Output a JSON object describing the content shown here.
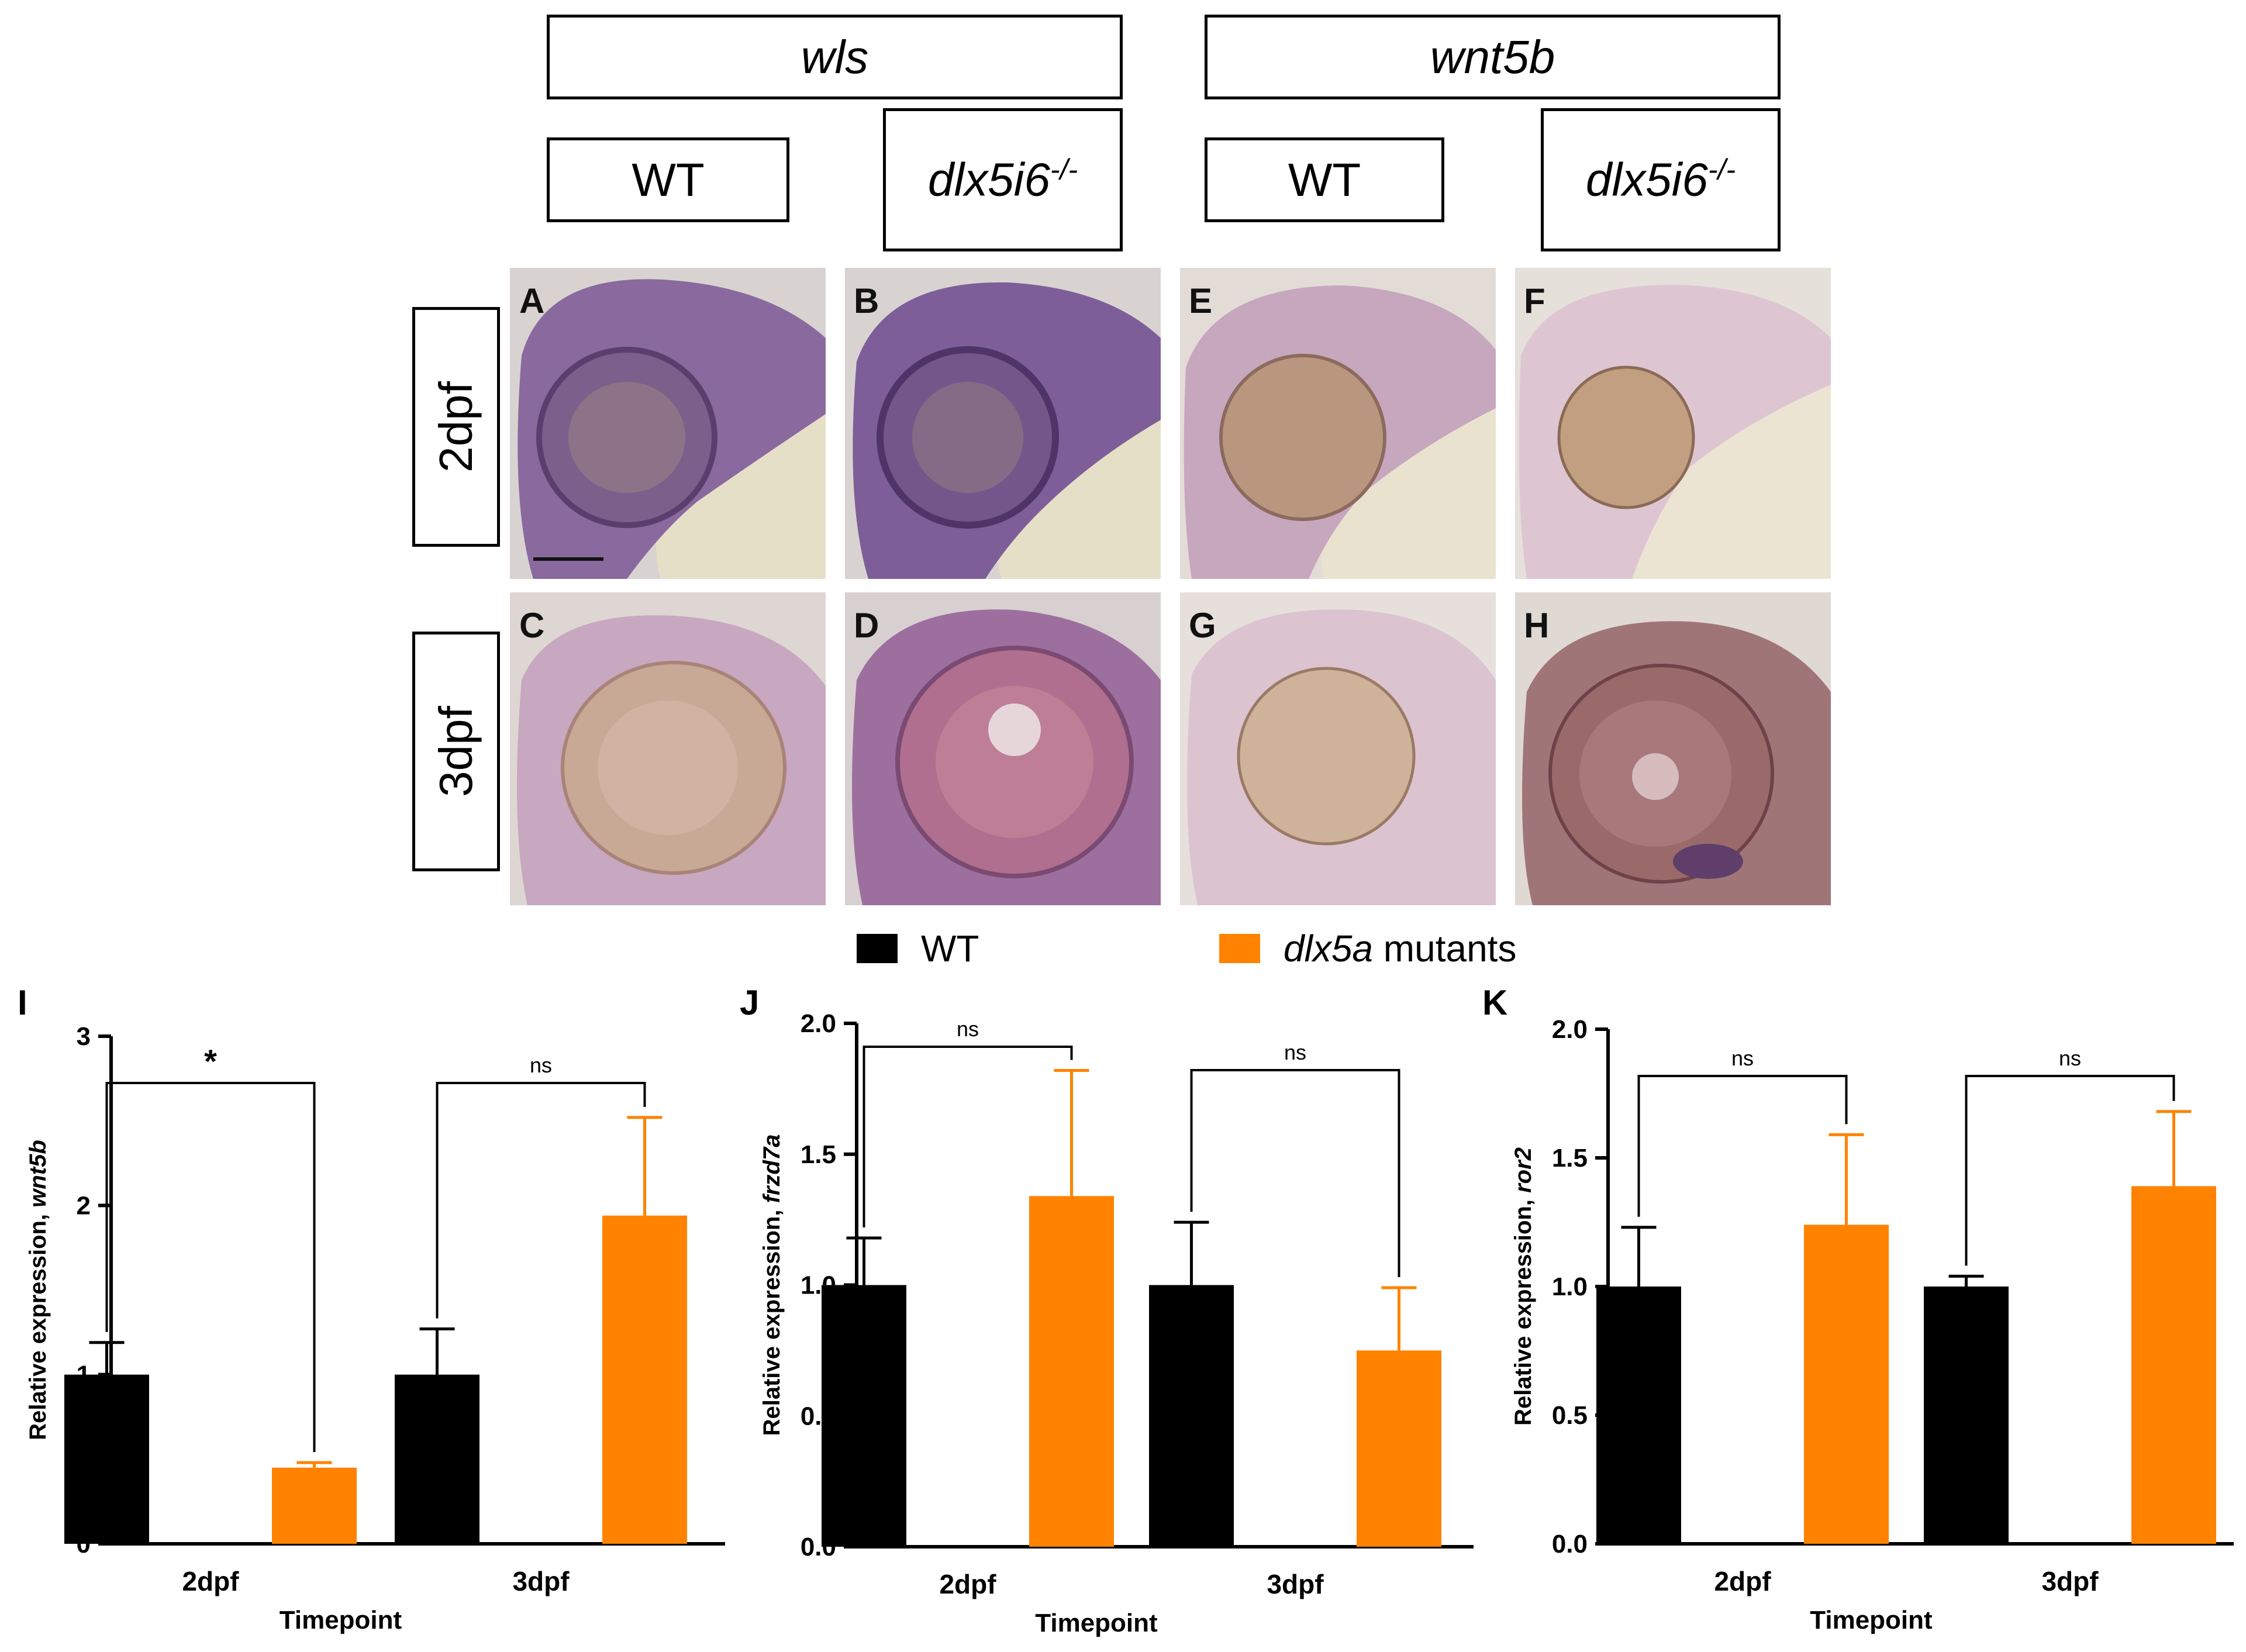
{
  "header": {
    "gene1": "wls",
    "gene2": "wnt5b",
    "wt_label": "WT",
    "mut_label_base": "dlx5i6",
    "mut_label_sup": "-/-"
  },
  "rows": {
    "row1": "2dpf",
    "row2": "3dpf"
  },
  "panels": [
    "A",
    "B",
    "C",
    "D",
    "E",
    "F",
    "G",
    "H"
  ],
  "legend": {
    "wt": "WT",
    "mut_gene": "dlx5a",
    "mut_suffix": " mutants",
    "wt_color": "#000000",
    "mut_color": "#FF8200"
  },
  "chart_data": [
    {
      "panel": "I",
      "type": "bar",
      "categories": [
        "2dpf",
        "3dpf"
      ],
      "series": [
        {
          "name": "WT",
          "values": [
            1.0,
            1.0
          ],
          "errors": [
            0.19,
            0.27
          ]
        },
        {
          "name": "dlx5a mutants",
          "values": [
            0.45,
            1.94
          ],
          "errors": [
            0.03,
            0.58
          ]
        }
      ],
      "xlabel": "Timepoint",
      "ylabel_prefix": "Relative expression, ",
      "ylabel_gene": "wnt5b",
      "ylim": [
        0,
        3
      ],
      "ticks": [
        "0",
        "1",
        "2",
        "3"
      ],
      "tick_values": [
        0,
        1,
        2,
        3
      ],
      "significance": [
        "*",
        "ns"
      ]
    },
    {
      "panel": "J",
      "type": "bar",
      "categories": [
        "2dpf",
        "3dpf"
      ],
      "series": [
        {
          "name": "WT",
          "values": [
            1.0,
            1.0
          ],
          "errors": [
            0.18,
            0.24
          ]
        },
        {
          "name": "dlx5a mutants",
          "values": [
            1.34,
            0.75
          ],
          "errors": [
            0.48,
            0.24
          ]
        }
      ],
      "xlabel": "Timepoint",
      "ylabel_prefix": "Relative expression, ",
      "ylabel_gene": "frzd7a",
      "ylim": [
        0,
        2
      ],
      "ticks": [
        "0.0",
        "0.5",
        "1.0",
        "1.5",
        "2.0"
      ],
      "tick_values": [
        0,
        0.5,
        1,
        1.5,
        2
      ],
      "significance": [
        "ns",
        "ns"
      ]
    },
    {
      "panel": "K",
      "type": "bar",
      "categories": [
        "2dpf",
        "3dpf"
      ],
      "series": [
        {
          "name": "WT",
          "values": [
            1.0,
            1.0
          ],
          "errors": [
            0.23,
            0.04
          ]
        },
        {
          "name": "dlx5a mutants",
          "values": [
            1.24,
            1.39
          ],
          "errors": [
            0.35,
            0.29
          ]
        }
      ],
      "xlabel": "Timepoint",
      "ylabel_prefix": "Relative expression, ",
      "ylabel_gene": "ror2",
      "ylim": [
        0,
        2
      ],
      "ticks": [
        "0.0",
        "0.5",
        "1.0",
        "1.5",
        "2.0"
      ],
      "tick_values": [
        0,
        0.5,
        1,
        1.5,
        2
      ],
      "significance": [
        "ns",
        "ns"
      ]
    }
  ]
}
